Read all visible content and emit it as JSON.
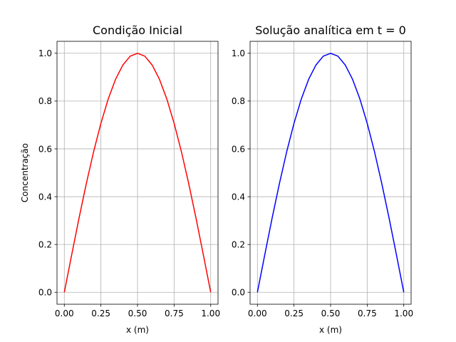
{
  "figure": {
    "background": "#ffffff",
    "grid_color": "#b0b0b0",
    "axis_color": "#000000"
  },
  "chart_data": [
    {
      "type": "line",
      "title": "Condição Inicial",
      "xlabel": "x (m)",
      "ylabel": "Concentração",
      "xlim": [
        -0.05,
        1.05
      ],
      "ylim": [
        -0.05,
        1.05
      ],
      "x_ticks": [
        0.0,
        0.25,
        0.5,
        0.75,
        1.0
      ],
      "x_tick_labels": [
        "0.00",
        "0.25",
        "0.50",
        "0.75",
        "1.00"
      ],
      "y_ticks": [
        0.0,
        0.2,
        0.4,
        0.6,
        0.8,
        1.0
      ],
      "y_tick_labels": [
        "0.0",
        "0.2",
        "0.4",
        "0.6",
        "0.8",
        "1.0"
      ],
      "grid": true,
      "series": [
        {
          "color": "#ff0000",
          "x": [
            0.0,
            0.05,
            0.1,
            0.15,
            0.2,
            0.25,
            0.3,
            0.35,
            0.4,
            0.45,
            0.5,
            0.55,
            0.6,
            0.65,
            0.7,
            0.75,
            0.8,
            0.85,
            0.9,
            0.95,
            1.0
          ],
          "values": [
            0.0,
            0.156,
            0.309,
            0.454,
            0.588,
            0.707,
            0.809,
            0.891,
            0.951,
            0.988,
            1.0,
            0.988,
            0.951,
            0.891,
            0.809,
            0.707,
            0.588,
            0.454,
            0.309,
            0.156,
            0.0
          ]
        }
      ]
    },
    {
      "type": "line",
      "title": "Solução analítica em t = 0",
      "xlabel": "x (m)",
      "ylabel": "",
      "xlim": [
        -0.05,
        1.05
      ],
      "ylim": [
        -0.05,
        1.05
      ],
      "x_ticks": [
        0.0,
        0.25,
        0.5,
        0.75,
        1.0
      ],
      "x_tick_labels": [
        "0.00",
        "0.25",
        "0.50",
        "0.75",
        "1.00"
      ],
      "y_ticks": [
        0.0,
        0.2,
        0.4,
        0.6,
        0.8,
        1.0
      ],
      "y_tick_labels": [
        "0.0",
        "0.2",
        "0.4",
        "0.6",
        "0.8",
        "1.0"
      ],
      "grid": true,
      "series": [
        {
          "color": "#0000ff",
          "x": [
            0.0,
            0.05,
            0.1,
            0.15,
            0.2,
            0.25,
            0.3,
            0.35,
            0.4,
            0.45,
            0.5,
            0.55,
            0.6,
            0.65,
            0.7,
            0.75,
            0.8,
            0.85,
            0.9,
            0.95,
            1.0
          ],
          "values": [
            0.0,
            0.156,
            0.309,
            0.454,
            0.588,
            0.707,
            0.809,
            0.891,
            0.951,
            0.988,
            1.0,
            0.988,
            0.951,
            0.891,
            0.809,
            0.707,
            0.588,
            0.454,
            0.309,
            0.156,
            0.0
          ]
        }
      ]
    }
  ]
}
